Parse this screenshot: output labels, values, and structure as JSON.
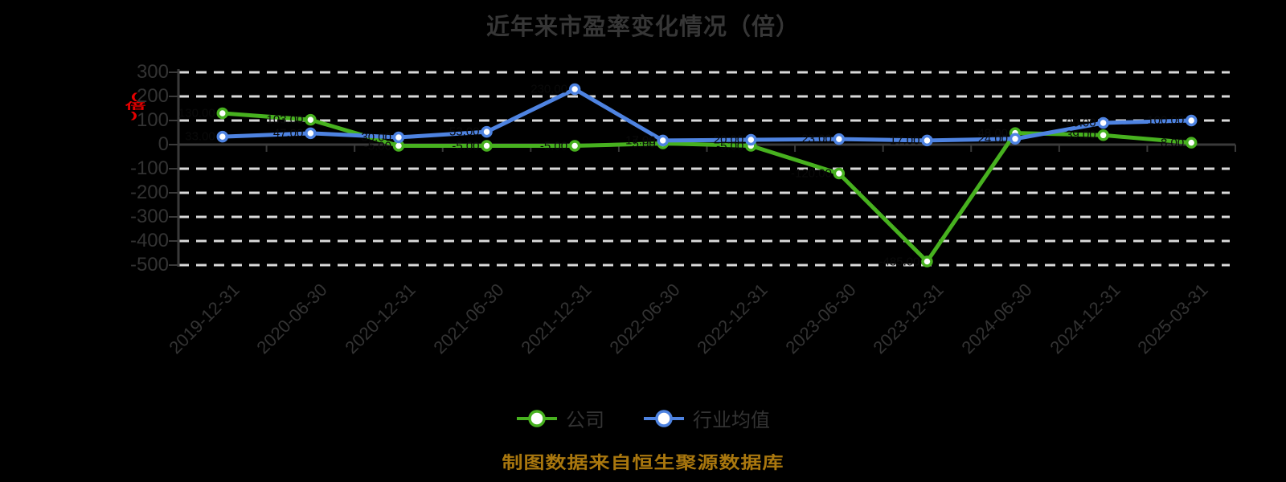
{
  "title": "近年来市盈率变化情况（倍）",
  "y_axis": {
    "unit_label": "(倍)",
    "unit_color": "#e60000",
    "tick_values": [
      300,
      200,
      100,
      0,
      -100,
      -200,
      -300,
      -400,
      -500
    ]
  },
  "legend": [
    {
      "label": "公司",
      "color": "#47b11f"
    },
    {
      "label": "行业均值",
      "color": "#4e83e1"
    }
  ],
  "footer": {
    "source_note": "制图数据来自恒生聚源数据库",
    "color": "#a9770e"
  },
  "chart_data": {
    "type": "line",
    "title": "近年来市盈率变化情况（倍）",
    "x": [
      "2019-12-31",
      "2020-06-30",
      "2020-12-31",
      "2021-06-30",
      "2021-12-31",
      "2022-06-30",
      "2022-12-31",
      "2023-06-30",
      "2023-12-31",
      "2024-06-30",
      "2024-12-31",
      "2025-03-31"
    ],
    "series": [
      {
        "name": "公司",
        "color": "#47b11f",
        "values": [
          130,
          103,
          -5,
          -5,
          -5,
          5,
          -5,
          -120,
          -485,
          48,
          39,
          8
        ]
      },
      {
        "name": "行业均值",
        "color": "#4e83e1",
        "values": [
          33,
          47,
          30,
          53,
          230,
          17,
          20,
          23,
          17,
          24,
          90,
          100
        ]
      }
    ],
    "ylabel": "(倍)",
    "xlabel": "",
    "ylim": [
      -500,
      300
    ],
    "y_step": 100,
    "grid": "horizontal-dashed",
    "grid_color": "#d9d9d9",
    "axis_color": "#3a3a3a",
    "text_color": "#333333",
    "marker": "circle-white-fill",
    "data_label_color": "#0a0a0a",
    "legend_position": "bottom"
  }
}
